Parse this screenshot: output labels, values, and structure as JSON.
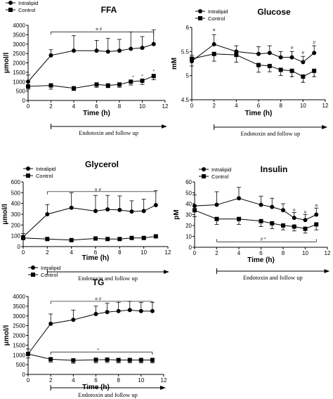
{
  "figure": {
    "endotoxin_label": "Endotoxin and follow up"
  },
  "chart_data": [
    {
      "type": "line",
      "title": "FFA",
      "xlabel": "Time (h)",
      "ylabel": "μmol/l",
      "xlim": [
        0,
        12
      ],
      "ylim": [
        0,
        4000
      ],
      "xticks": [
        "0",
        "2",
        "4",
        "6",
        "8",
        "10",
        "12"
      ],
      "yticks": [
        "0",
        "500",
        "1000",
        "1500",
        "2000",
        "2500",
        "3000",
        "3500",
        "4000"
      ],
      "legend_position": "top-left",
      "grid": false,
      "series": [
        {
          "name": "Intralipid",
          "marker": "circle",
          "x": [
            0,
            2,
            4,
            6,
            7,
            8,
            9,
            10,
            11
          ],
          "y": [
            1000,
            2400,
            2650,
            2650,
            2600,
            2650,
            2750,
            2800,
            3000
          ],
          "err": [
            350,
            300,
            800,
            550,
            700,
            600,
            900,
            600,
            750
          ]
        },
        {
          "name": "Control",
          "marker": "square",
          "x": [
            0,
            2,
            4,
            6,
            7,
            8,
            9,
            10,
            11
          ],
          "y": [
            750,
            800,
            650,
            850,
            800,
            850,
            1000,
            1050,
            1300
          ],
          "err": [
            150,
            200,
            120,
            150,
            120,
            150,
            180,
            200,
            200
          ]
        }
      ],
      "annotations": [
        {
          "text": "¤ #",
          "x": 6.2,
          "y": 3720
        },
        {
          "text": "*",
          "x": 9.2,
          "y": 1160
        },
        {
          "text": "*",
          "x": 10,
          "y": 1210
        },
        {
          "text": "*",
          "x": 11,
          "y": 1480
        }
      ],
      "bracket": {
        "x1": 2,
        "x2": 11,
        "y": 3650
      },
      "endotoxin_arrow": {
        "from": 2,
        "to": 11
      }
    },
    {
      "type": "line",
      "title": "Glucose",
      "xlabel": "Time (h)",
      "ylabel": "mM",
      "xlim": [
        0,
        12
      ],
      "ylim": [
        4.5,
        6
      ],
      "xticks": [
        "0",
        "2",
        "4",
        "6",
        "8",
        "10",
        "12"
      ],
      "yticks": [
        "4.5",
        "5",
        "5.5",
        "6"
      ],
      "legend_position": "top-left",
      "grid": false,
      "series": [
        {
          "name": "Intralipid",
          "marker": "circle",
          "x": [
            0,
            2,
            4,
            6,
            7,
            8,
            9,
            10,
            11
          ],
          "y": [
            5.3,
            5.65,
            5.5,
            5.45,
            5.47,
            5.38,
            5.38,
            5.28,
            5.47
          ],
          "err": [
            0.12,
            0.2,
            0.12,
            0.15,
            0.15,
            0.12,
            0.12,
            0.12,
            0.15
          ]
        },
        {
          "name": "Control",
          "marker": "square",
          "x": [
            0,
            2,
            4,
            6,
            7,
            8,
            9,
            10,
            11
          ],
          "y": [
            5.35,
            5.45,
            5.43,
            5.22,
            5.2,
            5.12,
            5.1,
            4.98,
            5.1
          ],
          "err": [
            0.15,
            0.15,
            0.15,
            0.15,
            0.12,
            0.12,
            0.12,
            0.12,
            0.12
          ]
        }
      ],
      "annotations": [
        {
          "text": "¤",
          "x": 2,
          "y": 5.92
        },
        {
          "text": "#",
          "x": 9,
          "y": 5.55
        },
        {
          "text": "#",
          "x": 10,
          "y": 5.45
        },
        {
          "text": "#",
          "x": 11,
          "y": 5.66
        },
        {
          "text": "*",
          "x": 9,
          "y": 4.93
        },
        {
          "text": "*",
          "x": 10,
          "y": 4.83
        },
        {
          "text": "*",
          "x": 11,
          "y": 4.93
        }
      ],
      "endotoxin_arrow": {
        "from": 2,
        "to": 11
      }
    },
    {
      "type": "line",
      "title": "Glycerol",
      "xlabel": "Time (h)",
      "ylabel": "μmol/l",
      "xlim": [
        0,
        12
      ],
      "ylim": [
        0,
        600
      ],
      "xticks": [
        "0",
        "2",
        "4",
        "6",
        "8",
        "10",
        "12"
      ],
      "yticks": [
        "0",
        "100",
        "200",
        "300",
        "400",
        "500",
        "600"
      ],
      "legend_position": "top-left",
      "grid": false,
      "series": [
        {
          "name": "Intralipid",
          "marker": "circle",
          "x": [
            0,
            2,
            4,
            6,
            7,
            8,
            9,
            10,
            11
          ],
          "y": [
            90,
            300,
            360,
            330,
            345,
            340,
            325,
            330,
            385
          ],
          "err": [
            30,
            90,
            140,
            145,
            130,
            130,
            100,
            110,
            135
          ]
        },
        {
          "name": "Control",
          "marker": "square",
          "x": [
            0,
            2,
            4,
            6,
            7,
            8,
            9,
            10,
            11
          ],
          "y": [
            80,
            70,
            60,
            75,
            70,
            70,
            80,
            80,
            95
          ],
          "err": [
            15,
            10,
            8,
            10,
            10,
            10,
            10,
            12,
            10
          ]
        }
      ],
      "annotations": [
        {
          "text": "¤ #",
          "x": 6.2,
          "y": 515
        }
      ],
      "bracket": {
        "x1": 2,
        "x2": 11,
        "y": 510
      },
      "endotoxin_arrow": {
        "from": 2,
        "to": 11
      }
    },
    {
      "type": "line",
      "title": "Insulin",
      "xlabel": "Time (h)",
      "ylabel": "pM",
      "xlim": [
        0,
        12
      ],
      "ylim": [
        0,
        60
      ],
      "xticks": [
        "0",
        "2",
        "4",
        "6",
        "8",
        "10",
        "12"
      ],
      "yticks": [
        "0",
        "10",
        "20",
        "30",
        "40",
        "50",
        "60"
      ],
      "legend_position": "top-left",
      "grid": false,
      "series": [
        {
          "name": "Intralipid",
          "marker": "circle",
          "x": [
            0,
            2,
            4,
            6,
            7,
            8,
            9,
            10,
            11
          ],
          "y": [
            38,
            39,
            45,
            39,
            37,
            34,
            27,
            25,
            30
          ],
          "err": [
            10,
            12,
            10,
            8,
            8,
            6,
            5,
            5,
            6
          ]
        },
        {
          "name": "Control",
          "marker": "square",
          "x": [
            0,
            2,
            4,
            6,
            7,
            8,
            9,
            10,
            11
          ],
          "y": [
            34,
            26,
            26,
            24,
            22,
            20,
            19,
            17,
            21
          ],
          "err": [
            6,
            5,
            5,
            5,
            5,
            4,
            4,
            4,
            5
          ]
        }
      ],
      "annotations": [
        {
          "text": "¤",
          "x": 9,
          "y": 33
        },
        {
          "text": "¤",
          "x": 10,
          "y": 31
        },
        {
          "text": "¤",
          "x": 11,
          "y": 37
        },
        {
          "text": "# *",
          "x": 6.2,
          "y": 6
        }
      ],
      "bracket": {
        "x1": 2,
        "x2": 11,
        "y": 5,
        "below": true
      },
      "endotoxin_arrow": {
        "from": 2,
        "to": 11
      }
    },
    {
      "type": "line",
      "title": "TG",
      "xlabel": "Time (h)",
      "ylabel": "μmol/l",
      "xlim": [
        0,
        12
      ],
      "ylim": [
        0,
        4000
      ],
      "xticks": [
        "0",
        "2",
        "4",
        "6",
        "8",
        "10",
        "12"
      ],
      "yticks": [
        "0",
        "500",
        "1000",
        "1500",
        "2000",
        "2500",
        "3000",
        "3500",
        "4000"
      ],
      "legend_position": "top-left",
      "grid": false,
      "series": [
        {
          "name": "Intralipid",
          "marker": "circle",
          "x": [
            0,
            2,
            4,
            6,
            7,
            8,
            9,
            10,
            11
          ],
          "y": [
            1050,
            2600,
            2800,
            3100,
            3200,
            3250,
            3300,
            3250,
            3250
          ],
          "err": [
            250,
            500,
            500,
            400,
            450,
            450,
            450,
            450,
            450
          ]
        },
        {
          "name": "Control",
          "marker": "square",
          "x": [
            0,
            2,
            4,
            6,
            7,
            8,
            9,
            10,
            11
          ],
          "y": [
            1050,
            780,
            720,
            750,
            760,
            740,
            740,
            740,
            740
          ],
          "err": [
            200,
            150,
            150,
            150,
            150,
            150,
            150,
            150,
            150
          ]
        }
      ],
      "annotations": [
        {
          "text": "¤ #",
          "x": 6.2,
          "y": 3800
        },
        {
          "text": "*",
          "x": 6.2,
          "y": 1180
        }
      ],
      "bracket": {
        "x1": 2,
        "x2": 11,
        "y": 3750
      },
      "bracket2": {
        "x1": 2,
        "x2": 11,
        "y": 1150
      },
      "endotoxin_arrow": {
        "from": 2,
        "to": 11
      }
    }
  ]
}
